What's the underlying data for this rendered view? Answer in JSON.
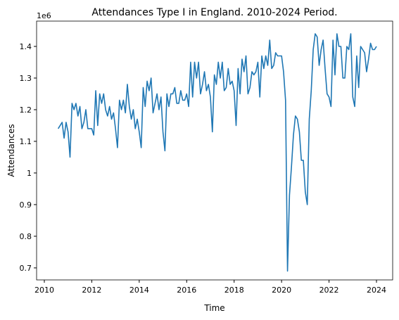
{
  "chart_data": {
    "type": "line",
    "title": "Attendances Type I in England. 2010-2024 Period.",
    "x_label": "Time",
    "y_label": "Attendances",
    "y_offset_label": "1e6",
    "xlim": [
      2009.674,
      2024.682
    ],
    "xticks": [
      2010,
      2012,
      2014,
      2016,
      2018,
      2020,
      2022,
      2024
    ],
    "ylim": [
      0.662,
      1.48
    ],
    "yticks": [
      0.7,
      0.8,
      0.9,
      1.0,
      1.1,
      1.2,
      1.3,
      1.4
    ],
    "series": [
      {
        "name": "Attendances",
        "color": "#1f77b4",
        "x": [
          2010.583,
          2010.667,
          2010.75,
          2010.833,
          2010.917,
          2011,
          2011.083,
          2011.167,
          2011.25,
          2011.333,
          2011.417,
          2011.5,
          2011.583,
          2011.667,
          2011.75,
          2011.833,
          2011.917,
          2012,
          2012.083,
          2012.167,
          2012.25,
          2012.333,
          2012.417,
          2012.5,
          2012.583,
          2012.667,
          2012.75,
          2012.833,
          2012.917,
          2013,
          2013.083,
          2013.167,
          2013.25,
          2013.333,
          2013.417,
          2013.5,
          2013.583,
          2013.667,
          2013.75,
          2013.833,
          2013.917,
          2014,
          2014.083,
          2014.167,
          2014.25,
          2014.333,
          2014.417,
          2014.5,
          2014.583,
          2014.667,
          2014.75,
          2014.833,
          2014.917,
          2015,
          2015.083,
          2015.167,
          2015.25,
          2015.333,
          2015.417,
          2015.5,
          2015.583,
          2015.667,
          2015.75,
          2015.833,
          2015.917,
          2016,
          2016.083,
          2016.167,
          2016.25,
          2016.333,
          2016.417,
          2016.5,
          2016.583,
          2016.667,
          2016.75,
          2016.833,
          2016.917,
          2017,
          2017.083,
          2017.167,
          2017.25,
          2017.333,
          2017.417,
          2017.5,
          2017.583,
          2017.667,
          2017.75,
          2017.833,
          2017.917,
          2018,
          2018.083,
          2018.167,
          2018.25,
          2018.333,
          2018.417,
          2018.5,
          2018.583,
          2018.667,
          2018.75,
          2018.833,
          2018.917,
          2019,
          2019.083,
          2019.167,
          2019.25,
          2019.333,
          2019.417,
          2019.5,
          2019.583,
          2019.667,
          2019.75,
          2019.833,
          2019.917,
          2020,
          2020.083,
          2020.167,
          2020.25,
          2020.333,
          2020.417,
          2020.5,
          2020.583,
          2020.667,
          2020.75,
          2020.833,
          2020.917,
          2021,
          2021.083,
          2021.167,
          2021.25,
          2021.333,
          2021.417,
          2021.5,
          2021.583,
          2021.667,
          2021.75,
          2021.833,
          2021.917,
          2022,
          2022.083,
          2022.167,
          2022.25,
          2022.333,
          2022.417,
          2022.5,
          2022.583,
          2022.667,
          2022.75,
          2022.833,
          2022.917,
          2023,
          2023.083,
          2023.167,
          2023.25,
          2023.333,
          2023.417,
          2023.5,
          2023.583,
          2023.667,
          2023.75,
          2023.833,
          2023.917,
          2024
        ],
        "values": [
          1.14,
          1.15,
          1.16,
          1.11,
          1.16,
          1.13,
          1.05,
          1.22,
          1.2,
          1.22,
          1.18,
          1.21,
          1.14,
          1.16,
          1.2,
          1.14,
          1.14,
          1.14,
          1.12,
          1.26,
          1.15,
          1.25,
          1.22,
          1.25,
          1.2,
          1.18,
          1.21,
          1.17,
          1.19,
          1.14,
          1.08,
          1.23,
          1.2,
          1.23,
          1.19,
          1.28,
          1.21,
          1.17,
          1.2,
          1.14,
          1.17,
          1.13,
          1.08,
          1.27,
          1.21,
          1.29,
          1.26,
          1.3,
          1.19,
          1.22,
          1.25,
          1.2,
          1.24,
          1.13,
          1.07,
          1.25,
          1.21,
          1.25,
          1.25,
          1.27,
          1.22,
          1.22,
          1.26,
          1.23,
          1.23,
          1.25,
          1.21,
          1.35,
          1.24,
          1.35,
          1.3,
          1.35,
          1.25,
          1.28,
          1.32,
          1.26,
          1.28,
          1.24,
          1.13,
          1.31,
          1.28,
          1.35,
          1.3,
          1.35,
          1.26,
          1.27,
          1.33,
          1.28,
          1.29,
          1.26,
          1.15,
          1.33,
          1.25,
          1.36,
          1.32,
          1.37,
          1.25,
          1.27,
          1.32,
          1.31,
          1.32,
          1.35,
          1.24,
          1.37,
          1.33,
          1.37,
          1.34,
          1.42,
          1.33,
          1.34,
          1.38,
          1.37,
          1.37,
          1.37,
          1.32,
          1.23,
          0.69,
          0.93,
          1.02,
          1.12,
          1.18,
          1.17,
          1.13,
          1.04,
          1.04,
          0.94,
          0.9,
          1.17,
          1.26,
          1.39,
          1.44,
          1.43,
          1.34,
          1.39,
          1.42,
          1.33,
          1.25,
          1.24,
          1.21,
          1.42,
          1.31,
          1.44,
          1.4,
          1.4,
          1.3,
          1.3,
          1.4,
          1.39,
          1.44,
          1.24,
          1.21,
          1.37,
          1.27,
          1.4,
          1.39,
          1.38,
          1.32,
          1.36,
          1.41,
          1.39,
          1.39,
          1.4
        ]
      }
    ]
  }
}
